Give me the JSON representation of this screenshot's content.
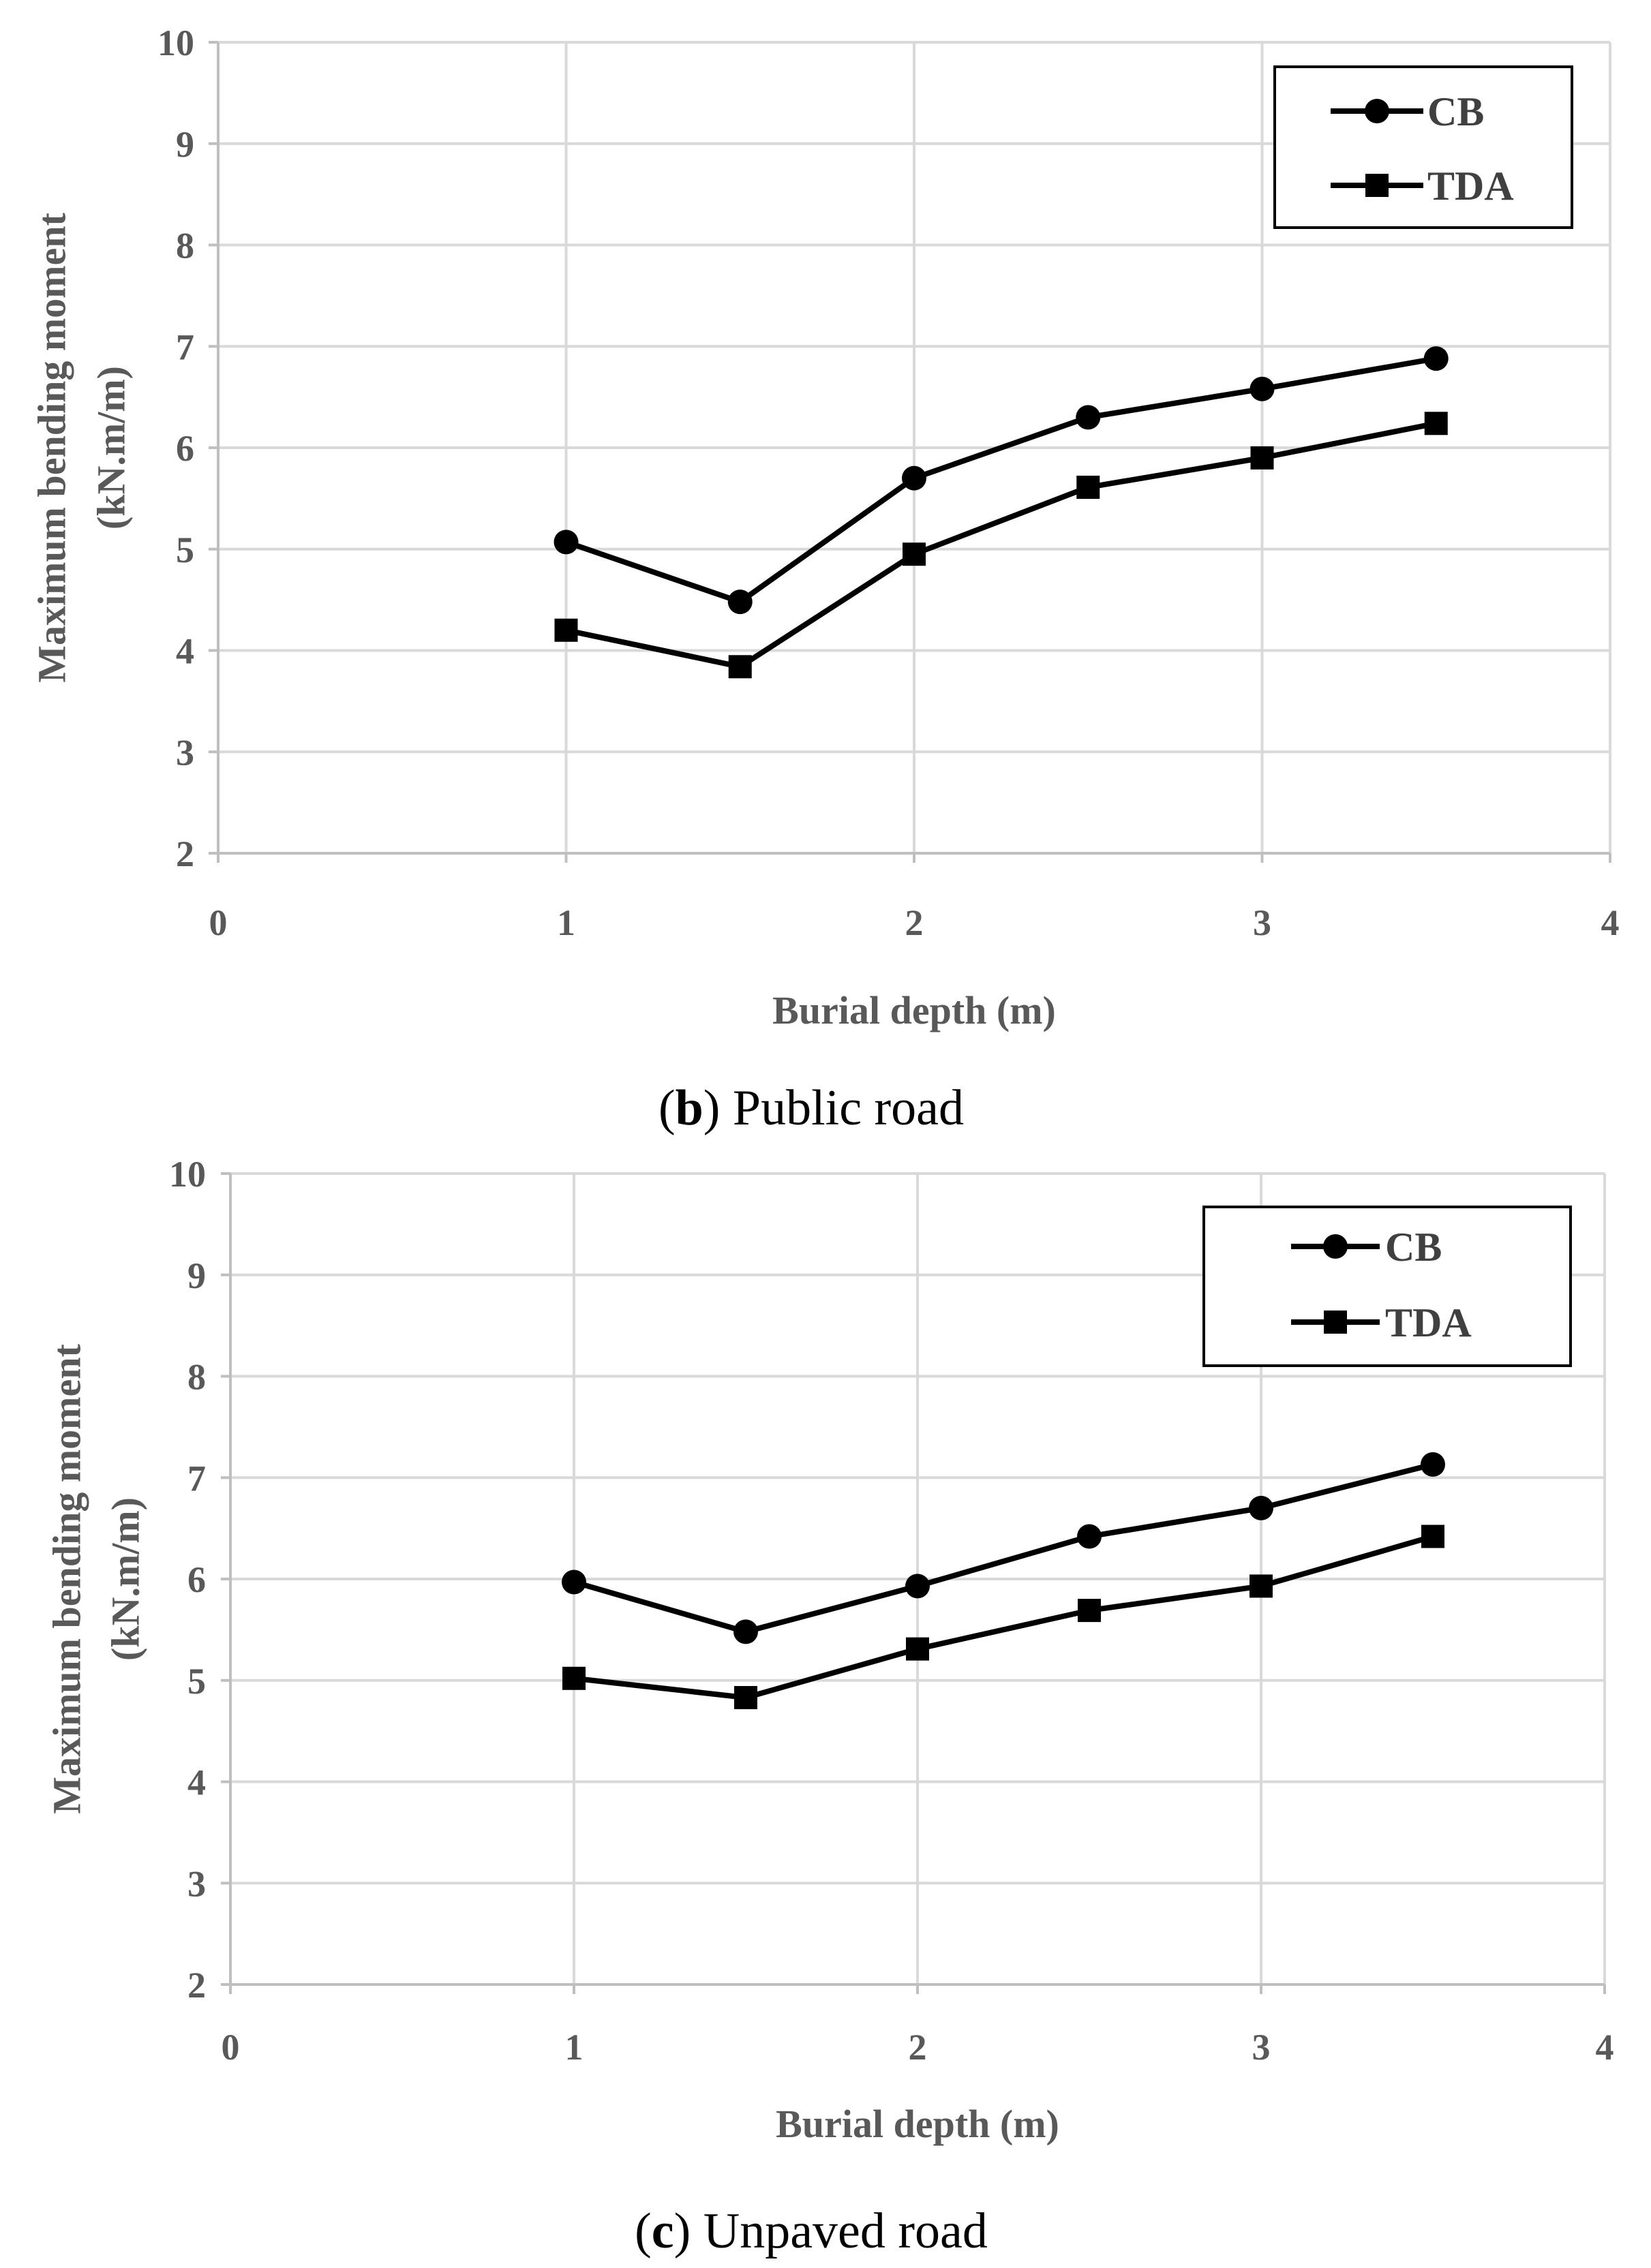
{
  "chart_data": [
    {
      "type": "line",
      "caption_letter": "b",
      "caption_text": "Public road",
      "xlabel": "Burial depth (m)",
      "ylabel": [
        "Maximum bending moment",
        "(kN.m/m)"
      ],
      "xlim": [
        0,
        4
      ],
      "ylim": [
        2,
        10
      ],
      "xticks": [
        0,
        1,
        2,
        3,
        4
      ],
      "yticks": [
        2,
        3,
        4,
        5,
        6,
        7,
        8,
        9,
        10
      ],
      "grid": true,
      "legend_position": "top-right",
      "x": [
        1,
        1.5,
        2,
        2.5,
        3,
        3.5
      ],
      "series": [
        {
          "name": "CB",
          "marker": "circle",
          "values": [
            5.07,
            4.48,
            5.7,
            6.3,
            6.58,
            6.88
          ]
        },
        {
          "name": "TDA",
          "marker": "square",
          "values": [
            4.2,
            3.84,
            4.95,
            5.61,
            5.9,
            6.24
          ]
        }
      ]
    },
    {
      "type": "line",
      "caption_letter": "c",
      "caption_text": "Unpaved road",
      "xlabel": "Burial depth (m)",
      "ylabel": [
        "Maximum bending moment",
        "(kN.m/m)"
      ],
      "xlim": [
        0,
        4
      ],
      "ylim": [
        2,
        10
      ],
      "xticks": [
        0,
        1,
        2,
        3,
        4
      ],
      "yticks": [
        2,
        3,
        4,
        5,
        6,
        7,
        8,
        9,
        10
      ],
      "grid": true,
      "legend_position": "top-right",
      "x": [
        1,
        1.5,
        2,
        2.5,
        3,
        3.5
      ],
      "series": [
        {
          "name": "CB",
          "marker": "circle",
          "values": [
            5.97,
            5.48,
            5.93,
            6.42,
            6.7,
            7.13
          ]
        },
        {
          "name": "TDA",
          "marker": "square",
          "values": [
            5.02,
            4.83,
            5.31,
            5.69,
            5.93,
            6.42
          ]
        }
      ]
    }
  ],
  "colors": {
    "grid": "#d9d9d9",
    "axis": "#bfbfbf",
    "series": "#000000",
    "tick_text": "#595959"
  }
}
